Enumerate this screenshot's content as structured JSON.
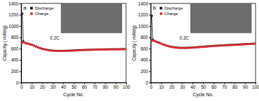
{
  "chart_data": [
    {
      "type": "line",
      "title": "a",
      "xlabel": "Cycle No.",
      "ylabel": "Capacity ( mAh/g)",
      "annotation": "0.2C",
      "x": [
        1,
        2,
        4,
        6,
        8,
        10,
        12,
        14,
        16,
        18,
        20,
        22,
        24,
        26,
        28,
        30,
        32,
        34,
        36,
        38,
        40,
        42,
        44,
        46,
        48,
        50,
        52,
        54,
        56,
        58,
        60,
        62,
        64,
        66,
        68,
        70,
        72,
        74,
        76,
        78,
        80,
        82,
        84,
        86,
        88,
        90,
        92,
        94,
        96,
        98,
        100
      ],
      "series": [
        {
          "name": "Discharge",
          "color": "#111111",
          "marker": "square",
          "values": [
            1220,
            730,
            700,
            690,
            680,
            670,
            655,
            640,
            625,
            612,
            600,
            590,
            582,
            575,
            570,
            566,
            563,
            561,
            560,
            560,
            561,
            562,
            563,
            565,
            567,
            569,
            571,
            573,
            575,
            576,
            578,
            579,
            580,
            581,
            582,
            583,
            584,
            585,
            586,
            587,
            587,
            588,
            589,
            589,
            590,
            590,
            591,
            591,
            592,
            592,
            593
          ]
        },
        {
          "name": "Charge",
          "color": "#e8262b",
          "marker": "circle",
          "values": [
            700,
            715,
            695,
            686,
            676,
            666,
            651,
            636,
            622,
            609,
            597,
            587,
            579,
            572,
            567,
            563,
            560,
            558,
            557,
            557,
            558,
            559,
            560,
            562,
            564,
            566,
            568,
            570,
            572,
            573,
            575,
            576,
            577,
            578,
            579,
            580,
            581,
            582,
            583,
            584,
            584,
            585,
            586,
            586,
            587,
            587,
            588,
            588,
            589,
            589,
            590
          ]
        }
      ],
      "xlim": [
        0,
        100
      ],
      "xticks": [
        0,
        10,
        20,
        30,
        40,
        50,
        60,
        70,
        80,
        90,
        100
      ],
      "ylim": [
        0,
        1400
      ],
      "yticks": [
        0,
        200,
        400,
        600,
        800,
        1000,
        1200,
        1400
      ],
      "legend": "upper left"
    },
    {
      "type": "line",
      "title": "b",
      "xlabel": "Cycle No.",
      "ylabel": "Capacity ( mAh/g)",
      "annotation": "0.2C",
      "x": [
        1,
        2,
        4,
        6,
        8,
        10,
        12,
        14,
        16,
        18,
        20,
        22,
        24,
        26,
        28,
        30,
        32,
        34,
        36,
        38,
        40,
        42,
        44,
        46,
        48,
        50,
        52,
        54,
        56,
        58,
        60,
        62,
        64,
        66,
        68,
        70,
        72,
        74,
        76,
        78,
        80,
        82,
        84,
        86,
        88,
        90,
        92,
        94,
        96,
        98,
        100
      ],
      "series": [
        {
          "name": "Discharge",
          "color": "#111111",
          "marker": "square",
          "values": [
            1180,
            760,
            735,
            720,
            705,
            690,
            675,
            662,
            650,
            640,
            632,
            626,
            621,
            618,
            616,
            615,
            615,
            616,
            617,
            619,
            621,
            623,
            626,
            629,
            632,
            635,
            638,
            641,
            644,
            647,
            650,
            652,
            654,
            656,
            658,
            660,
            662,
            664,
            666,
            668,
            670,
            672,
            674,
            676,
            678,
            680,
            682,
            684,
            686,
            688,
            690
          ]
        },
        {
          "name": "Charge",
          "color": "#e8262b",
          "marker": "circle",
          "values": [
            735,
            745,
            731,
            716,
            701,
            686,
            671,
            658,
            646,
            636,
            628,
            622,
            617,
            614,
            612,
            611,
            611,
            612,
            613,
            615,
            617,
            619,
            622,
            625,
            628,
            631,
            634,
            637,
            640,
            643,
            646,
            648,
            650,
            652,
            654,
            656,
            658,
            660,
            662,
            664,
            666,
            668,
            670,
            672,
            674,
            676,
            678,
            680,
            682,
            684,
            686
          ]
        }
      ],
      "xlim": [
        0,
        100
      ],
      "xticks": [
        0,
        10,
        20,
        30,
        40,
        50,
        60,
        70,
        80,
        90,
        100
      ],
      "ylim": [
        0,
        1400
      ],
      "yticks": [
        0,
        200,
        400,
        600,
        800,
        1000,
        1200,
        1400
      ],
      "legend": "upper left"
    }
  ]
}
